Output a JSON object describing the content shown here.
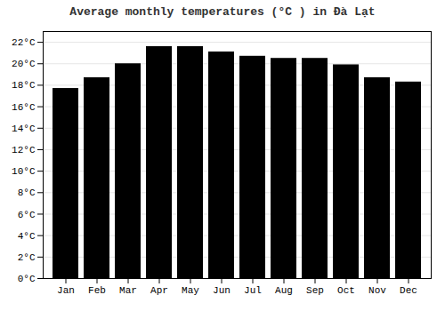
{
  "chart_data": {
    "type": "bar",
    "title": "Average monthly temperatures (°C ) in Đà Lạt",
    "categories": [
      "Jan",
      "Feb",
      "Mar",
      "Apr",
      "May",
      "Jun",
      "Jul",
      "Aug",
      "Sep",
      "Oct",
      "Nov",
      "Dec"
    ],
    "values": [
      17.7,
      18.7,
      20.0,
      21.6,
      21.6,
      21.1,
      20.7,
      20.5,
      20.5,
      19.9,
      18.7,
      18.3
    ],
    "ylim": [
      0,
      23
    ],
    "yticks": [
      {
        "value": 0,
        "label": "0°C"
      },
      {
        "value": 2,
        "label": "2°C"
      },
      {
        "value": 4,
        "label": "4°C"
      },
      {
        "value": 6,
        "label": "6°C"
      },
      {
        "value": 8,
        "label": "8°C"
      },
      {
        "value": 10,
        "label": "10°C"
      },
      {
        "value": 12,
        "label": "12°C"
      },
      {
        "value": 14,
        "label": "14°C"
      },
      {
        "value": 16,
        "label": "16°C"
      },
      {
        "value": 18,
        "label": "18°C"
      },
      {
        "value": 20,
        "label": "20°C"
      },
      {
        "value": 22,
        "label": "22°C"
      }
    ],
    "grid": true
  }
}
